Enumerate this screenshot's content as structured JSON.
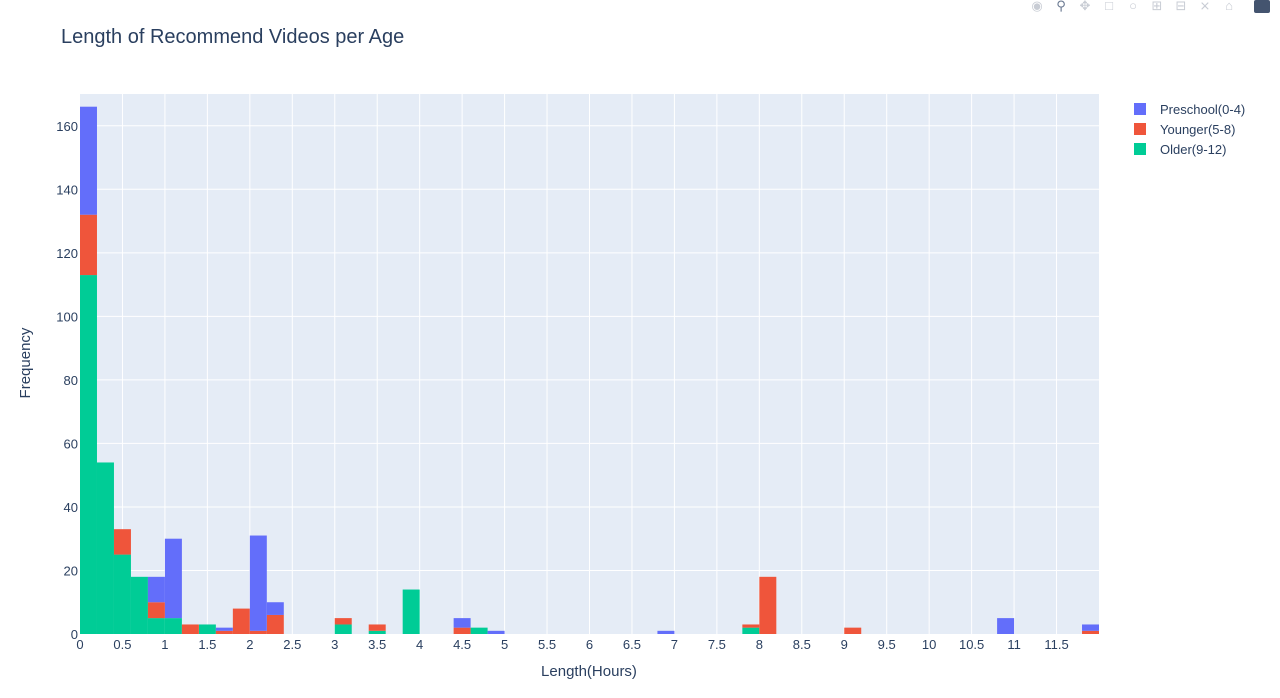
{
  "modebar": {
    "camera_icon": "camera-icon",
    "zoom_icon": "zoom-icon",
    "pan_icon": "pan-icon",
    "box_select_icon": "box-select-icon",
    "lasso_icon": "lasso-icon",
    "zoom_in_icon": "zoom-in-icon",
    "zoom_out_icon": "zoom-out-icon",
    "autoscale_icon": "autoscale-icon",
    "home_icon": "home-icon",
    "logo_icon": "plotly-logo-icon"
  },
  "chart_data": {
    "type": "bar",
    "barmode": "stack",
    "title": "Length of Recommend Videos per Age",
    "xlabel": "Length(Hours)",
    "ylabel": "Frequency",
    "xlim": [
      0,
      12.0
    ],
    "ylim": [
      0,
      170
    ],
    "bin_width": 0.2,
    "x_ticks": [
      "0",
      "0.5",
      "1",
      "1.5",
      "2",
      "2.5",
      "3",
      "3.5",
      "4",
      "4.5",
      "5",
      "5.5",
      "6",
      "6.5",
      "7",
      "7.5",
      "8",
      "8.5",
      "9",
      "9.5",
      "10",
      "10.5",
      "11",
      "11.5"
    ],
    "y_ticks": [
      0,
      20,
      40,
      60,
      80,
      100,
      120,
      140,
      160
    ],
    "grid": true,
    "legend_position": "top-right",
    "background": "#e5ecf6",
    "series": [
      {
        "name": "Older(9-12)",
        "color": "#00cc96",
        "bins": [
          {
            "x0": 0.0,
            "value": 113
          },
          {
            "x0": 0.2,
            "value": 54
          },
          {
            "x0": 0.4,
            "value": 25
          },
          {
            "x0": 0.6,
            "value": 18
          },
          {
            "x0": 0.8,
            "value": 5
          },
          {
            "x0": 1.0,
            "value": 5
          },
          {
            "x0": 1.4,
            "value": 3
          },
          {
            "x0": 3.0,
            "value": 3
          },
          {
            "x0": 3.4,
            "value": 1
          },
          {
            "x0": 3.8,
            "value": 14
          },
          {
            "x0": 4.6,
            "value": 2
          },
          {
            "x0": 7.8,
            "value": 2
          }
        ]
      },
      {
        "name": "Younger(5-8)",
        "color": "#ef553b",
        "bins": [
          {
            "x0": 0.0,
            "value": 19
          },
          {
            "x0": 0.4,
            "value": 8
          },
          {
            "x0": 0.8,
            "value": 5
          },
          {
            "x0": 1.2,
            "value": 3
          },
          {
            "x0": 1.6,
            "value": 1
          },
          {
            "x0": 1.8,
            "value": 8
          },
          {
            "x0": 2.0,
            "value": 1
          },
          {
            "x0": 2.2,
            "value": 6
          },
          {
            "x0": 3.0,
            "value": 2
          },
          {
            "x0": 3.4,
            "value": 2
          },
          {
            "x0": 4.4,
            "value": 2
          },
          {
            "x0": 7.8,
            "value": 1
          },
          {
            "x0": 8.0,
            "value": 18
          },
          {
            "x0": 9.0,
            "value": 2
          },
          {
            "x0": 11.8,
            "value": 1
          }
        ]
      },
      {
        "name": "Preschool(0-4)",
        "color": "#636efa",
        "bins": [
          {
            "x0": 0.0,
            "value": 34
          },
          {
            "x0": 0.8,
            "value": 8
          },
          {
            "x0": 1.0,
            "value": 25
          },
          {
            "x0": 1.6,
            "value": 1
          },
          {
            "x0": 2.0,
            "value": 30
          },
          {
            "x0": 2.2,
            "value": 4
          },
          {
            "x0": 4.4,
            "value": 3
          },
          {
            "x0": 4.8,
            "value": 1
          },
          {
            "x0": 6.8,
            "value": 1
          },
          {
            "x0": 10.8,
            "value": 5
          },
          {
            "x0": 11.8,
            "value": 2
          }
        ]
      }
    ],
    "legend_order": [
      "Preschool(0-4)",
      "Younger(5-8)",
      "Older(9-12)"
    ]
  }
}
